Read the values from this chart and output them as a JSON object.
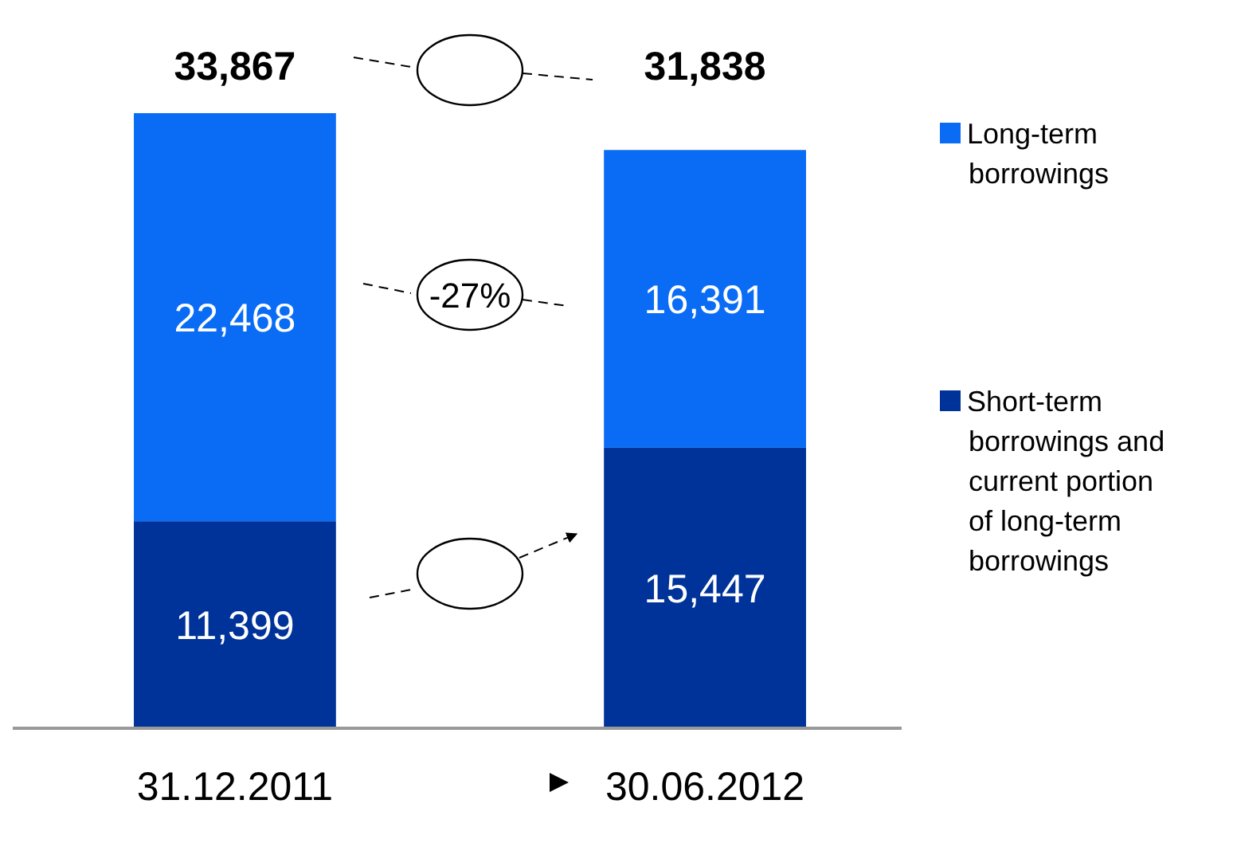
{
  "chart_data": {
    "type": "bar",
    "stacked": true,
    "categories": [
      "31.12.2011",
      "30.06.2012"
    ],
    "series": [
      {
        "name": "Short-term borrowings and current portion of long-term borrowings",
        "color": "#003399",
        "values": [
          11399,
          15447
        ],
        "value_labels": [
          "11,399",
          "15,447"
        ]
      },
      {
        "name": "Long-term borrowings",
        "color": "#0a6cf5",
        "values": [
          22468,
          16391
        ],
        "value_labels": [
          "22,468",
          "16,391"
        ]
      }
    ],
    "totals": [
      "33,867",
      "31,838"
    ],
    "legend": "right",
    "annotations": [
      "-27%"
    ]
  }
}
